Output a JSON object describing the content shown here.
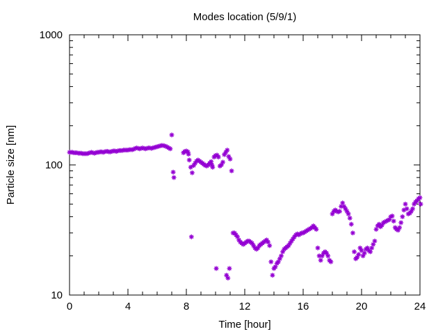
{
  "chart_data": {
    "type": "scatter",
    "title": "Modes location (5/9/1)",
    "xlabel": "Time [hour]",
    "ylabel": "Particle size [nm]",
    "xlim": [
      0,
      24
    ],
    "ylim": [
      10,
      1000
    ],
    "yscale": "log",
    "x_ticks": [
      "0",
      "4",
      "8",
      "12",
      "16",
      "20",
      "24"
    ],
    "y_ticks": [
      "10",
      "100",
      "1000"
    ],
    "grid": false,
    "legend": "none",
    "marker_color": "#9400d3",
    "series": [
      {
        "marker": "star",
        "points": [
          [
            0.0,
            125
          ],
          [
            0.1,
            125
          ],
          [
            0.2,
            125
          ],
          [
            0.3,
            124
          ],
          [
            0.4,
            124
          ],
          [
            0.5,
            124
          ],
          [
            0.6,
            123
          ],
          [
            0.7,
            123
          ],
          [
            0.8,
            123
          ],
          [
            0.9,
            122
          ],
          [
            1.0,
            122
          ],
          [
            1.1,
            122
          ],
          [
            1.2,
            122
          ],
          [
            1.3,
            123
          ],
          [
            1.4,
            124
          ],
          [
            1.5,
            125
          ],
          [
            1.6,
            124
          ],
          [
            1.7,
            123
          ],
          [
            1.8,
            124
          ],
          [
            1.9,
            125
          ],
          [
            2.0,
            125
          ],
          [
            2.1,
            126
          ],
          [
            2.2,
            126
          ],
          [
            2.3,
            125
          ],
          [
            2.4,
            126
          ],
          [
            2.5,
            127
          ],
          [
            2.6,
            127
          ],
          [
            2.7,
            126
          ],
          [
            2.8,
            126
          ],
          [
            2.9,
            127
          ],
          [
            3.0,
            128
          ],
          [
            3.1,
            128
          ],
          [
            3.2,
            127
          ],
          [
            3.3,
            128
          ],
          [
            3.4,
            129
          ],
          [
            3.5,
            129
          ],
          [
            3.6,
            129
          ],
          [
            3.7,
            130
          ],
          [
            3.8,
            130
          ],
          [
            3.9,
            130
          ],
          [
            4.0,
            130
          ],
          [
            4.1,
            131
          ],
          [
            4.2,
            131
          ],
          [
            4.3,
            131
          ],
          [
            4.4,
            132
          ],
          [
            4.5,
            134
          ],
          [
            4.6,
            135
          ],
          [
            4.7,
            134
          ],
          [
            4.8,
            133
          ],
          [
            4.9,
            134
          ],
          [
            5.0,
            135
          ],
          [
            5.1,
            134
          ],
          [
            5.2,
            133
          ],
          [
            5.3,
            134
          ],
          [
            5.4,
            135
          ],
          [
            5.5,
            135
          ],
          [
            5.6,
            134
          ],
          [
            5.7,
            135
          ],
          [
            5.8,
            136
          ],
          [
            5.9,
            137
          ],
          [
            6.0,
            138
          ],
          [
            6.1,
            139
          ],
          [
            6.2,
            140
          ],
          [
            6.3,
            141
          ],
          [
            6.4,
            141
          ],
          [
            6.5,
            140
          ],
          [
            6.6,
            139
          ],
          [
            6.7,
            137
          ],
          [
            6.8,
            135
          ],
          [
            6.9,
            133
          ],
          [
            7.0,
            170
          ],
          [
            7.1,
            88
          ],
          [
            7.15,
            80
          ],
          [
            7.8,
            124
          ],
          [
            7.9,
            127
          ],
          [
            8.0,
            128
          ],
          [
            8.1,
            126
          ],
          [
            8.15,
            121
          ],
          [
            8.2,
            109
          ],
          [
            8.3,
            96
          ],
          [
            8.35,
            28
          ],
          [
            8.4,
            87
          ],
          [
            8.5,
            99
          ],
          [
            8.6,
            103
          ],
          [
            8.7,
            107
          ],
          [
            8.8,
            109
          ],
          [
            8.9,
            107
          ],
          [
            9.0,
            105
          ],
          [
            9.1,
            103
          ],
          [
            9.2,
            101
          ],
          [
            9.3,
            99
          ],
          [
            9.4,
            98
          ],
          [
            9.5,
            100
          ],
          [
            9.6,
            103
          ],
          [
            9.7,
            106
          ],
          [
            9.75,
            100
          ],
          [
            9.8,
            96
          ],
          [
            9.9,
            115
          ],
          [
            10.0,
            118
          ],
          [
            10.05,
            16
          ],
          [
            10.1,
            119
          ],
          [
            10.2,
            115
          ],
          [
            10.3,
            98
          ],
          [
            10.4,
            100
          ],
          [
            10.5,
            105
          ],
          [
            10.6,
            120
          ],
          [
            10.7,
            125
          ],
          [
            10.75,
            14.2
          ],
          [
            10.8,
            130
          ],
          [
            10.85,
            13.5
          ],
          [
            10.9,
            116
          ],
          [
            10.95,
            16
          ],
          [
            11.0,
            111
          ],
          [
            11.1,
            90
          ],
          [
            11.2,
            30
          ],
          [
            11.3,
            30
          ],
          [
            11.4,
            29
          ],
          [
            11.5,
            28
          ],
          [
            11.6,
            26.5
          ],
          [
            11.7,
            25.5
          ],
          [
            11.8,
            25
          ],
          [
            11.9,
            24.5
          ],
          [
            12.0,
            25
          ],
          [
            12.1,
            25.5
          ],
          [
            12.2,
            26
          ],
          [
            12.3,
            26
          ],
          [
            12.4,
            25.5
          ],
          [
            12.5,
            25
          ],
          [
            12.6,
            24
          ],
          [
            12.7,
            23
          ],
          [
            12.8,
            22.5
          ],
          [
            12.9,
            23
          ],
          [
            13.0,
            24
          ],
          [
            13.1,
            24.5
          ],
          [
            13.2,
            25
          ],
          [
            13.3,
            25.5
          ],
          [
            13.4,
            26
          ],
          [
            13.5,
            26.5
          ],
          [
            13.6,
            25.5
          ],
          [
            13.7,
            24
          ],
          [
            13.8,
            18
          ],
          [
            13.9,
            14.2
          ],
          [
            14.0,
            16
          ],
          [
            14.1,
            16.5
          ],
          [
            14.2,
            17.5
          ],
          [
            14.3,
            18
          ],
          [
            14.4,
            19
          ],
          [
            14.5,
            20
          ],
          [
            14.6,
            21.5
          ],
          [
            14.7,
            22.5
          ],
          [
            14.8,
            23
          ],
          [
            14.9,
            23.5
          ],
          [
            15.0,
            24
          ],
          [
            15.1,
            25
          ],
          [
            15.2,
            26
          ],
          [
            15.3,
            27
          ],
          [
            15.4,
            28
          ],
          [
            15.5,
            29
          ],
          [
            15.6,
            29.5
          ],
          [
            15.7,
            29
          ],
          [
            15.8,
            29.5
          ],
          [
            15.9,
            30
          ],
          [
            16.0,
            30
          ],
          [
            16.1,
            30.5
          ],
          [
            16.2,
            31
          ],
          [
            16.3,
            31.5
          ],
          [
            16.4,
            32
          ],
          [
            16.5,
            32.5
          ],
          [
            16.6,
            33
          ],
          [
            16.7,
            34
          ],
          [
            16.8,
            33
          ],
          [
            16.9,
            32
          ],
          [
            17.0,
            23
          ],
          [
            17.1,
            20
          ],
          [
            17.2,
            18.5
          ],
          [
            17.3,
            20
          ],
          [
            17.4,
            21
          ],
          [
            17.5,
            21.5
          ],
          [
            17.6,
            21
          ],
          [
            17.7,
            20
          ],
          [
            17.8,
            18.5
          ],
          [
            17.9,
            18
          ],
          [
            18.0,
            42
          ],
          [
            18.1,
            44
          ],
          [
            18.2,
            45
          ],
          [
            18.3,
            44
          ],
          [
            18.4,
            43.5
          ],
          [
            18.5,
            44
          ],
          [
            18.6,
            48
          ],
          [
            18.7,
            51
          ],
          [
            18.8,
            48
          ],
          [
            18.9,
            46
          ],
          [
            19.0,
            44
          ],
          [
            19.1,
            42
          ],
          [
            19.2,
            39
          ],
          [
            19.3,
            35
          ],
          [
            19.4,
            30
          ],
          [
            19.5,
            21.5
          ],
          [
            19.6,
            19
          ],
          [
            19.7,
            19.5
          ],
          [
            19.8,
            20.5
          ],
          [
            19.9,
            23
          ],
          [
            20.0,
            22
          ],
          [
            20.1,
            20
          ],
          [
            20.2,
            21
          ],
          [
            20.3,
            22.5
          ],
          [
            20.4,
            23
          ],
          [
            20.5,
            22
          ],
          [
            20.6,
            21.5
          ],
          [
            20.7,
            23
          ],
          [
            20.8,
            24.5
          ],
          [
            20.9,
            26
          ],
          [
            21.0,
            32
          ],
          [
            21.1,
            34
          ],
          [
            21.2,
            35
          ],
          [
            21.3,
            33.5
          ],
          [
            21.4,
            34.5
          ],
          [
            21.5,
            36
          ],
          [
            21.6,
            36.5
          ],
          [
            21.7,
            37
          ],
          [
            21.8,
            37.5
          ],
          [
            21.9,
            38
          ],
          [
            22.0,
            40
          ],
          [
            22.1,
            40.5
          ],
          [
            22.2,
            37
          ],
          [
            22.3,
            33
          ],
          [
            22.4,
            32
          ],
          [
            22.5,
            31.5
          ],
          [
            22.6,
            33
          ],
          [
            22.7,
            36
          ],
          [
            22.8,
            40
          ],
          [
            22.9,
            45
          ],
          [
            23.0,
            50
          ],
          [
            23.1,
            46
          ],
          [
            23.2,
            42
          ],
          [
            23.3,
            42.5
          ],
          [
            23.4,
            44
          ],
          [
            23.5,
            46
          ],
          [
            23.6,
            50
          ],
          [
            23.7,
            52
          ],
          [
            23.8,
            53
          ],
          [
            23.9,
            55
          ],
          [
            24.0,
            56
          ],
          [
            24.05,
            50
          ]
        ]
      }
    ]
  }
}
